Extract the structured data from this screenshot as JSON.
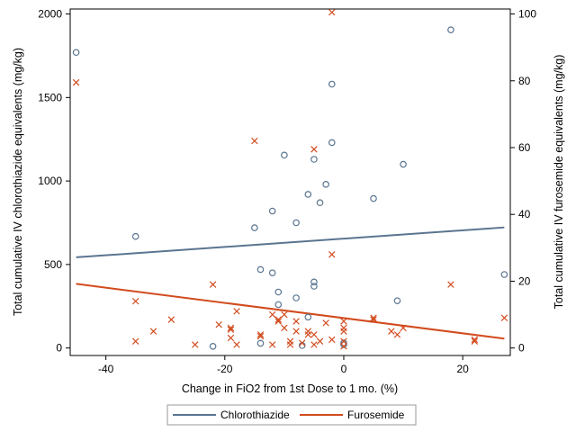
{
  "chart_data": {
    "type": "scatter",
    "xlabel": "Change in FiO2 from 1st Dose to 1 mo. (%)",
    "ylabel_left": "Total cumulative IV chlorothiazide equivalents (mg/kg)",
    "ylabel_right": "Total cumulative IV furosemide equivalents (mg/kg)",
    "xlim": [
      -46,
      28
    ],
    "ylim_left": [
      -45,
      2030
    ],
    "ylim_right": [
      -2.25,
      101.5
    ],
    "x_ticks": [
      -40,
      -20,
      0,
      20
    ],
    "x_tick_labels": [
      "-40",
      "-20",
      "0",
      "20"
    ],
    "y_left_ticks": [
      0,
      500,
      1000,
      1500,
      2000
    ],
    "y_left_tick_labels": [
      "0",
      "500",
      "1000",
      "1500",
      "2000"
    ],
    "y_right_ticks": [
      0,
      20,
      40,
      60,
      80,
      100
    ],
    "y_right_tick_labels": [
      "0",
      "20",
      "40",
      "60",
      "80",
      "100"
    ],
    "grid": false,
    "legend_position": "bottom",
    "legend": [
      {
        "label": "Chlorothiazide",
        "color": "#5a7590"
      },
      {
        "label": "Furosemide",
        "color": "#d24b1e"
      }
    ],
    "series": [
      {
        "name": "Chlorothiazide",
        "axis": "left",
        "marker": "circle",
        "color": "#5a7590",
        "points": [
          [
            -45,
            1770
          ],
          [
            -35,
            668
          ],
          [
            -22,
            10
          ],
          [
            -15,
            720
          ],
          [
            -14,
            470
          ],
          [
            -14,
            28
          ],
          [
            -12,
            820
          ],
          [
            -12,
            450
          ],
          [
            -11,
            335
          ],
          [
            -11,
            260
          ],
          [
            -10,
            1155
          ],
          [
            -8,
            750
          ],
          [
            -8,
            300
          ],
          [
            -7,
            15
          ],
          [
            -6,
            920
          ],
          [
            -6,
            185
          ],
          [
            -5,
            1130
          ],
          [
            -5,
            395
          ],
          [
            -5,
            370
          ],
          [
            -4,
            870
          ],
          [
            -3,
            980
          ],
          [
            -2,
            1580
          ],
          [
            -2,
            1230
          ],
          [
            0,
            20
          ],
          [
            0,
            30
          ],
          [
            5,
            895
          ],
          [
            9,
            283
          ],
          [
            10,
            1100
          ],
          [
            18,
            1905
          ],
          [
            27,
            440
          ]
        ],
        "fit": {
          "x": [
            -45,
            27
          ],
          "y": [
            543,
            722
          ]
        }
      },
      {
        "name": "Furosemide",
        "axis": "right",
        "marker": "x",
        "color": "#d24b1e",
        "points": [
          [
            -45,
            79.5
          ],
          [
            -35,
            14
          ],
          [
            -35,
            2
          ],
          [
            -32,
            5
          ],
          [
            -29,
            8.5
          ],
          [
            -25,
            1
          ],
          [
            -22,
            19
          ],
          [
            -21,
            7
          ],
          [
            -19,
            6
          ],
          [
            -19,
            5.5
          ],
          [
            -19,
            3
          ],
          [
            -18,
            11
          ],
          [
            -18,
            1
          ],
          [
            -15,
            62
          ],
          [
            -14,
            4
          ],
          [
            -14,
            3.5
          ],
          [
            -12,
            10
          ],
          [
            -12,
            1
          ],
          [
            -11,
            8.5
          ],
          [
            -11,
            8
          ],
          [
            -10,
            10
          ],
          [
            -10,
            6
          ],
          [
            -9,
            2
          ],
          [
            -9,
            1
          ],
          [
            -8,
            8
          ],
          [
            -8,
            5
          ],
          [
            -7,
            1.5
          ],
          [
            -6,
            5
          ],
          [
            -6,
            4
          ],
          [
            -5,
            59.5
          ],
          [
            -5,
            4
          ],
          [
            -5,
            1
          ],
          [
            -4,
            2
          ],
          [
            -3,
            7.5
          ],
          [
            -2,
            100.5
          ],
          [
            -2,
            28
          ],
          [
            -2,
            2.5
          ],
          [
            0,
            8
          ],
          [
            0,
            6
          ],
          [
            0,
            5
          ],
          [
            0,
            2
          ],
          [
            0,
            0.5
          ],
          [
            5,
            9
          ],
          [
            5,
            8.5
          ],
          [
            8,
            5
          ],
          [
            9,
            4
          ],
          [
            10,
            6
          ],
          [
            18,
            19
          ],
          [
            22,
            2.5
          ],
          [
            22,
            2
          ],
          [
            27,
            9
          ]
        ],
        "fit": {
          "x": [
            -45,
            27
          ],
          "y": [
            19.2,
            2.8
          ]
        }
      }
    ]
  }
}
